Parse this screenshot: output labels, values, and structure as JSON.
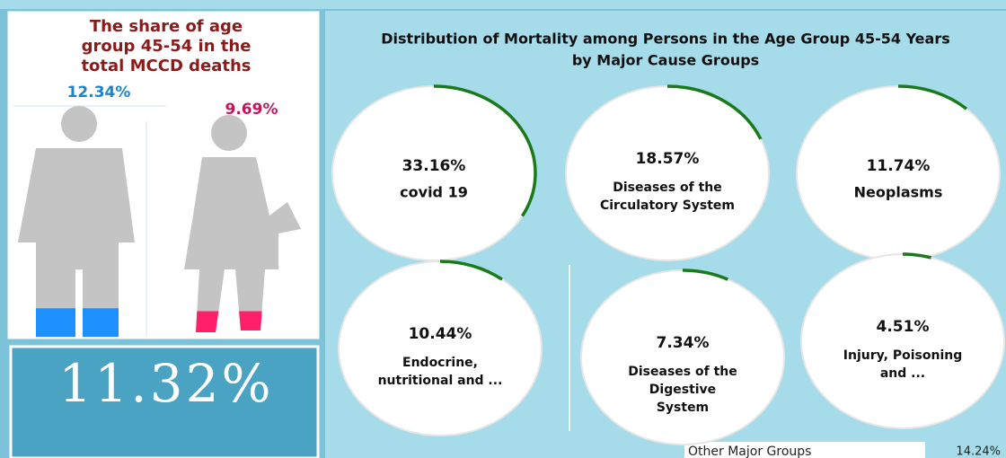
{
  "left_panel": {
    "title": [
      "The share of age",
      "group 45-54 in the",
      "total MCCD deaths"
    ],
    "male": {
      "value": 12.34,
      "label": "12.34%"
    },
    "female": {
      "value": 9.69,
      "label": "9.69%"
    }
  },
  "total": {
    "value": 11.32,
    "label": "11.32%"
  },
  "right_panel": {
    "title": [
      "Distribution of Mortality among Persons in the Age Group 45-54 Years",
      "by Major Cause Groups"
    ],
    "gauges": [
      {
        "value": 33.16,
        "label": "33.16%",
        "name": [
          "covid 19"
        ]
      },
      {
        "value": 18.57,
        "label": "18.57%",
        "name": [
          "Diseases of the",
          "Circulatory System"
        ]
      },
      {
        "value": 11.74,
        "label": "11.74%",
        "name": [
          "Neoplasms"
        ]
      },
      {
        "value": 10.44,
        "label": "10.44%",
        "name": [
          "Endocrine,",
          "nutritional and ..."
        ]
      },
      {
        "value": 7.34,
        "label": "7.34%",
        "name": [
          "Diseases of the",
          "Digestive",
          "System"
        ]
      },
      {
        "value": 4.51,
        "label": "4.51%",
        "name": [
          "Injury, Poisoning",
          "and ..."
        ]
      }
    ],
    "other": {
      "name": "Other Major Groups",
      "value": 14.24,
      "label": "14.24%"
    }
  }
}
